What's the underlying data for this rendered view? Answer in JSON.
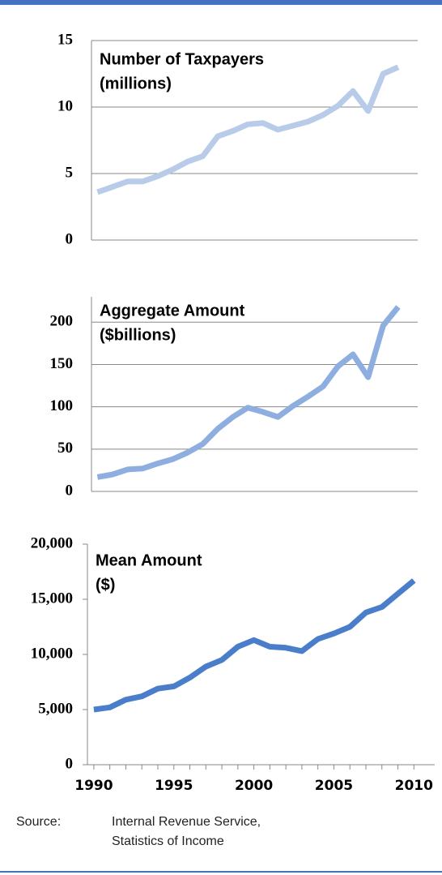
{
  "chart_data": [
    {
      "type": "line",
      "title": [
        "Number of Taxpayers",
        "(millions)"
      ],
      "x": [
        1990,
        1991,
        1992,
        1993,
        1994,
        1995,
        1996,
        1997,
        1998,
        1999,
        2000,
        2001,
        2002,
        2003,
        2004,
        2005,
        2006,
        2007,
        2008,
        2009,
        2010
      ],
      "series": [
        {
          "color": "#b8cbe8",
          "values": [
            3.6,
            4.0,
            4.4,
            4.4,
            4.8,
            5.3,
            5.9,
            6.3,
            7.8,
            8.2,
            8.7,
            8.8,
            8.3,
            8.6,
            8.9,
            9.4,
            10.1,
            11.2,
            9.7,
            12.5,
            13.0
          ]
        }
      ],
      "xlim": [
        1989.6,
        2011.3
      ],
      "ylim": [
        0,
        15
      ],
      "yticks": [
        0,
        5,
        10,
        15
      ],
      "grid": true
    },
    {
      "type": "line",
      "title": [
        "Aggregate Amount",
        "($billions)"
      ],
      "x": [
        1990,
        1991,
        1992,
        1993,
        1994,
        1995,
        1996,
        1997,
        1998,
        1999,
        2000,
        2001,
        2002,
        2003,
        2004,
        2005,
        2006,
        2007,
        2008,
        2009,
        2010
      ],
      "series": [
        {
          "color": "#8eaee0",
          "values": [
            17,
            20,
            26,
            27,
            33,
            38,
            46,
            56,
            74,
            88,
            99,
            94,
            88,
            101,
            112,
            124,
            148,
            162,
            135,
            196,
            218
          ]
        }
      ],
      "xlim": [
        1989.6,
        2011.3
      ],
      "ylim": [
        0,
        230
      ],
      "yticks": [
        0,
        50,
        100,
        150,
        200
      ],
      "grid": true
    },
    {
      "type": "line",
      "title": [
        "Mean Amount",
        "($)"
      ],
      "x": [
        1990,
        1991,
        1992,
        1993,
        1994,
        1995,
        1996,
        1997,
        1998,
        1999,
        2000,
        2001,
        2002,
        2003,
        2004,
        2005,
        2006,
        2007,
        2008,
        2009,
        2010
      ],
      "series": [
        {
          "color": "#4a7ecb",
          "values": [
            5000,
            5200,
            5900,
            6200,
            6900,
            7100,
            7900,
            8900,
            9500,
            10700,
            11300,
            10700,
            10600,
            10300,
            11400,
            11900,
            12500,
            13800,
            14300,
            15500,
            16700
          ]
        }
      ],
      "xlim": [
        1989.6,
        2011.3
      ],
      "ylim": [
        0,
        20000
      ],
      "yticks": [
        0,
        {
          "value": 5000,
          "label": "5,000"
        },
        {
          "value": 10000,
          "label": "10,000"
        },
        {
          "value": 15000,
          "label": "15,000"
        },
        {
          "value": 20000,
          "label": "20,000"
        }
      ],
      "xticks": [
        1990,
        1995,
        2000,
        2005,
        2010
      ],
      "grid": false
    }
  ],
  "source": {
    "label": "Source:",
    "lines": [
      "Internal Revenue Service,",
      "Statistics of Income"
    ]
  }
}
